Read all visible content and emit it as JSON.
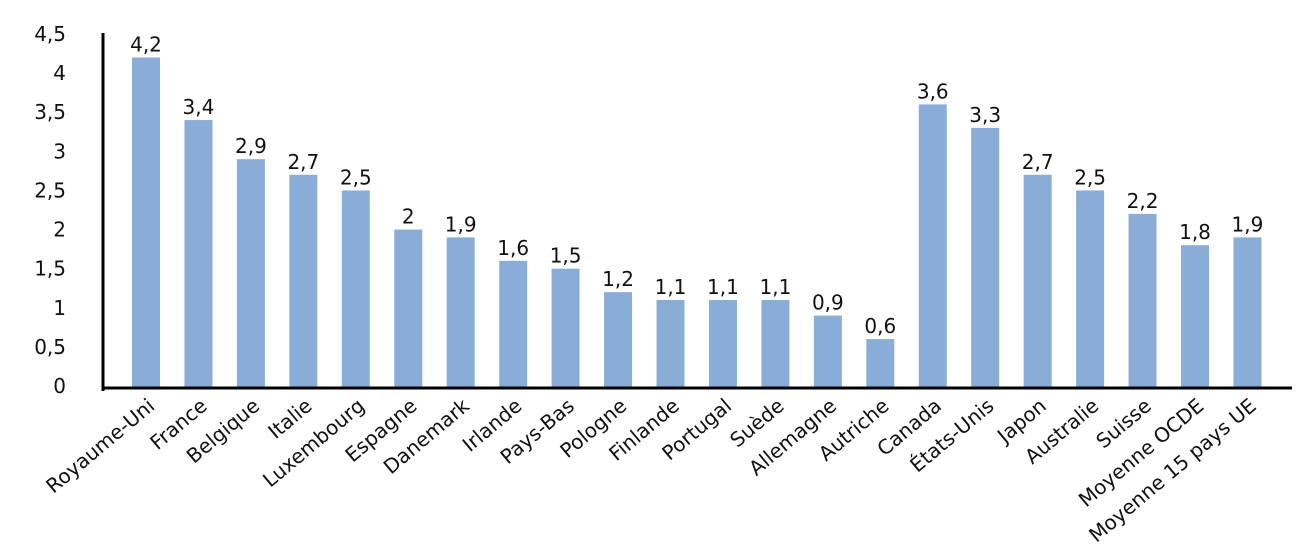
{
  "chart_data": {
    "type": "bar",
    "title": "",
    "xlabel": "",
    "ylabel": "",
    "ylim": [
      0,
      4.5
    ],
    "ytick_step": 0.5,
    "yticks": [
      "0",
      "0,5",
      "1",
      "1,5",
      "2",
      "2,5",
      "3",
      "3,5",
      "4",
      "4,5"
    ],
    "grid": false,
    "legend": "none",
    "bar_color": "#8AADD8",
    "categories": [
      "Royaume-Uni",
      "France",
      "Belgique",
      "Italie",
      "Luxembourg",
      "Espagne",
      "Danemark",
      "Irlande",
      "Pays-Bas",
      "Pologne",
      "Finlande",
      "Portugal",
      "Suède",
      "Allemagne",
      "Autriche",
      "Canada",
      "États-Unis",
      "Japon",
      "Australie",
      "Suisse",
      "Moyenne OCDE",
      "Moyenne 15 pays UE"
    ],
    "values": [
      4.2,
      3.4,
      2.9,
      2.7,
      2.5,
      2,
      1.9,
      1.6,
      1.5,
      1.2,
      1.1,
      1.1,
      1.1,
      0.9,
      0.6,
      3.6,
      3.3,
      2.7,
      2.5,
      2.2,
      1.8,
      1.9
    ],
    "data_labels": [
      "4,2",
      "3,4",
      "2,9",
      "2,7",
      "2,5",
      "2",
      "1,9",
      "1,6",
      "1,5",
      "1,2",
      "1,1",
      "1,1",
      "1,1",
      "0,9",
      "0,6",
      "3,6",
      "3,3",
      "2,7",
      "2,5",
      "2,2",
      "1,8",
      "1,9"
    ]
  }
}
